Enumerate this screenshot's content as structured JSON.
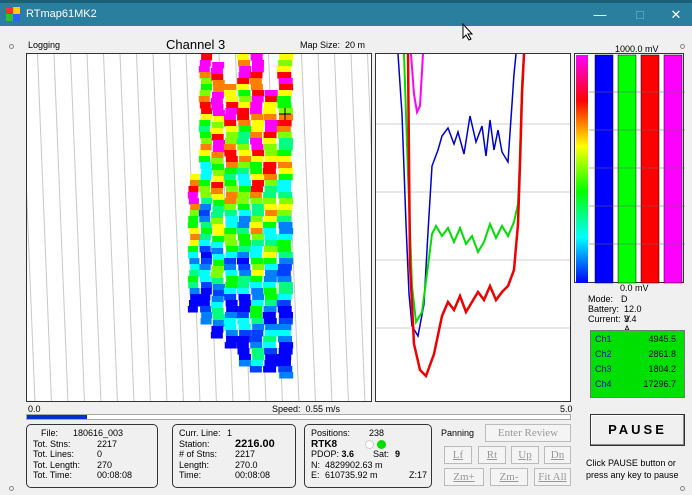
{
  "window": {
    "title": "RTmap61MK2",
    "min": "—",
    "max": "□",
    "close": "✕"
  },
  "top": {
    "logging": "Logging",
    "channel": "Channel 3",
    "map_size_label": "Map Size:",
    "map_size_value": "20 m"
  },
  "scale": {
    "min": "0.0",
    "speed_label": "Speed:",
    "speed_value": "0.55 m/s",
    "max": "5.0",
    "progress_fraction": 0.11
  },
  "bars": {
    "top_label": "1000.0 mV",
    "bottom_label": "0.0 mV",
    "colors": [
      "#0000ff",
      "#00ff00",
      "#ff0000",
      "#ff00ff"
    ]
  },
  "status": [
    {
      "label": "Mode:",
      "value": "D"
    },
    {
      "label": "Battery:",
      "value": "12.0 V"
    },
    {
      "label": "Current:",
      "value": "3.4 A"
    }
  ],
  "channels": [
    {
      "name": "Ch1",
      "value": "4945.5"
    },
    {
      "name": "Ch2",
      "value": "2861.8"
    },
    {
      "name": "Ch3",
      "value": "1804.2"
    },
    {
      "name": "Ch4",
      "value": "17296.7"
    }
  ],
  "file_box": [
    {
      "label": "File:",
      "value": "180616_003"
    },
    {
      "label": "Tot. Stns:",
      "value": "2217"
    },
    {
      "label": "Tot. Lines:",
      "value": "0"
    },
    {
      "label": "Tot. Length:",
      "value": "270"
    },
    {
      "label": "Tot. Time:",
      "value": "00:08:08"
    }
  ],
  "line_box": [
    {
      "label": "Curr. Line:",
      "value": "1"
    },
    {
      "label": "Station:",
      "value": "2216.00"
    },
    {
      "label": "# of Stns:",
      "value": "2217"
    },
    {
      "label": "Length:",
      "value": "270.0"
    },
    {
      "label": "Time:",
      "value": "00:08:08"
    }
  ],
  "gps_box": {
    "positions_label": "Positions:",
    "positions_value": "238",
    "rtk_label": "RTK8",
    "pdop_label": "PDOP:",
    "pdop_value": "3.6",
    "sat_label": "Sat:",
    "sat_value": "9",
    "n_label": "N:",
    "n_value": "4829902.63 m",
    "e_label": "E:",
    "e_value": "610735.92 m",
    "z_label": "Z:17"
  },
  "panning": {
    "label": "Panning",
    "enter_review": "Enter Review",
    "lf": "Lf",
    "rt": "Rt",
    "up": "Up",
    "dn": "Dn",
    "zm_plus": "Zm+",
    "zm_minus": "Zm-",
    "fit_all": "Fit All"
  },
  "pause": {
    "label": "PAUSE",
    "help": "Click PAUSE button or press any key to pause"
  },
  "colors": {
    "titlebar": "#2a7f9e",
    "ch_box": "#00e000",
    "progress": "#0030d0"
  }
}
